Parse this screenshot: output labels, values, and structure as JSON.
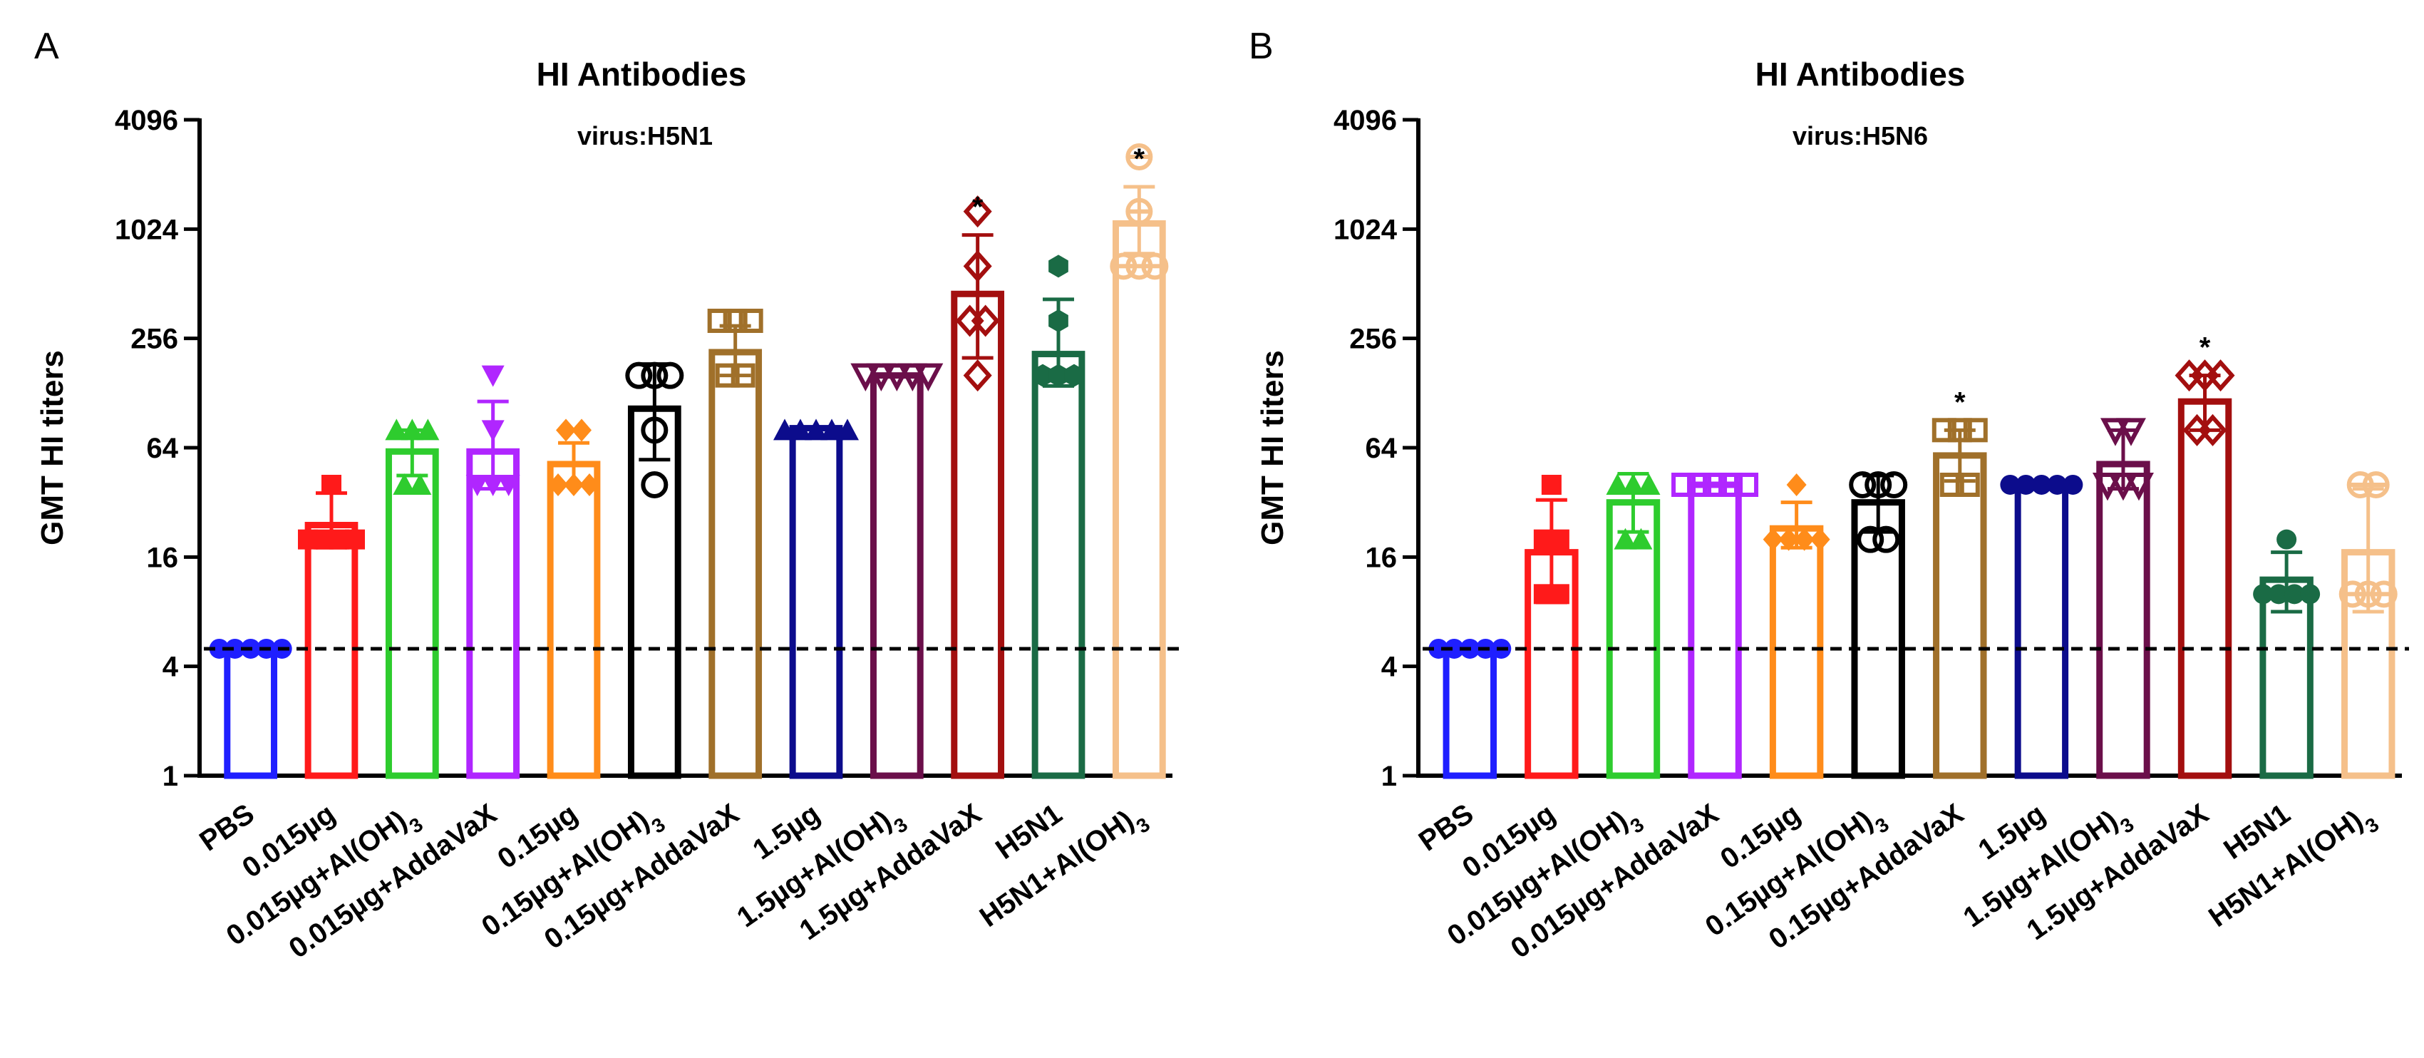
{
  "chart_data": [
    {
      "panel": "A",
      "type": "bar",
      "title": "HI Antibodies",
      "subtitle": "virus:H5N1",
      "ylabel": "GMT HI titers",
      "xlabel": "",
      "yscale": "log2",
      "ylim": [
        1,
        4096
      ],
      "yticks": [
        {
          "value": 1,
          "label": "1"
        },
        {
          "value": 4,
          "label": "4"
        },
        {
          "value": 16,
          "label": "16"
        },
        {
          "value": 64,
          "label": "64"
        },
        {
          "value": 256,
          "label": "256"
        },
        {
          "value": 1024,
          "label": "1024"
        },
        {
          "value": 4096,
          "label": "4096"
        }
      ],
      "threshold": 5,
      "categories": [
        {
          "prefix": "PBS"
        },
        {
          "prefix": "0.015µg"
        },
        {
          "prefix": "0.015µg+Al(OH)",
          "sub": "3"
        },
        {
          "prefix": "0.015µg+AddaVaX"
        },
        {
          "prefix": "0.15µg"
        },
        {
          "prefix": "0.15µg+Al(OH)",
          "sub": "3"
        },
        {
          "prefix": "0.15µg+AddaVaX"
        },
        {
          "prefix": "1.5µg"
        },
        {
          "prefix": "1.5µg+Al(OH)",
          "sub": "3"
        },
        {
          "prefix": "1.5µg+AddaVaX"
        },
        {
          "prefix": "H5N1"
        },
        {
          "prefix": "H5N1+Al(OH)",
          "sub": "3"
        }
      ],
      "series": [
        {
          "color": "#1f1fff",
          "marker": "circle-filled",
          "mean": 5,
          "err_low": 5,
          "err_high": 5,
          "points": [
            5,
            5,
            5,
            5,
            5
          ],
          "sig": ""
        },
        {
          "color": "#ff1a1a",
          "marker": "square-filled",
          "mean": 24,
          "err_low": 18,
          "err_high": 36,
          "points": [
            20,
            20,
            20,
            20,
            40
          ],
          "sig": ""
        },
        {
          "color": "#2ecc2e",
          "marker": "triangle-up-filled",
          "mean": 61,
          "err_low": 45,
          "err_high": 80,
          "points": [
            40,
            40,
            80,
            80,
            80
          ],
          "sig": ""
        },
        {
          "color": "#b026ff",
          "marker": "triangle-down-filled",
          "mean": 61,
          "err_low": 38,
          "err_high": 115,
          "points": [
            40,
            40,
            40,
            80,
            160
          ],
          "sig": ""
        },
        {
          "color": "#ff8c1a",
          "marker": "diamond-filled",
          "mean": 52,
          "err_low": 40,
          "err_high": 68,
          "points": [
            40,
            40,
            40,
            80,
            80
          ],
          "sig": ""
        },
        {
          "color": "#000000",
          "marker": "circle-open",
          "mean": 105,
          "err_low": 55,
          "err_high": 185,
          "points": [
            40,
            80,
            160,
            160,
            160
          ],
          "sig": ""
        },
        {
          "color": "#a0702a",
          "marker": "square-open",
          "mean": 215,
          "err_low": 160,
          "err_high": 300,
          "points": [
            160,
            160,
            320,
            320,
            320
          ],
          "sig": ""
        },
        {
          "color": "#0c0c8c",
          "marker": "triangle-up-filled",
          "mean": 82,
          "err_low": 82,
          "err_high": 82,
          "points": [
            80,
            80,
            80,
            80,
            80
          ],
          "sig": ""
        },
        {
          "color": "#6b0f4a",
          "marker": "triangle-down-open",
          "mean": 160,
          "err_low": 160,
          "err_high": 160,
          "points": [
            160,
            160,
            160,
            160,
            160
          ],
          "sig": ""
        },
        {
          "color": "#a30f0f",
          "marker": "diamond-open",
          "mean": 450,
          "err_low": 200,
          "err_high": 950,
          "points": [
            160,
            320,
            320,
            640,
            1280
          ],
          "sig": "*"
        },
        {
          "color": "#1a6b45",
          "marker": "hexagon-filled",
          "mean": 210,
          "err_low": 140,
          "err_high": 420,
          "points": [
            160,
            160,
            160,
            320,
            640
          ],
          "sig": ""
        },
        {
          "color": "#f5c08a",
          "marker": "circle-half",
          "mean": 1100,
          "err_low": 750,
          "err_high": 1750,
          "points": [
            640,
            640,
            640,
            1280,
            2560
          ],
          "sig": "*"
        }
      ]
    },
    {
      "panel": "B",
      "type": "bar",
      "title": "HI Antibodies",
      "subtitle": "virus:H5N6",
      "ylabel": "GMT HI titers",
      "xlabel": "",
      "yscale": "log2",
      "ylim": [
        1,
        4096
      ],
      "yticks": [
        {
          "value": 1,
          "label": "1"
        },
        {
          "value": 4,
          "label": "4"
        },
        {
          "value": 16,
          "label": "16"
        },
        {
          "value": 64,
          "label": "64"
        },
        {
          "value": 256,
          "label": "256"
        },
        {
          "value": 1024,
          "label": "1024"
        },
        {
          "value": 4096,
          "label": "4096"
        }
      ],
      "threshold": 5,
      "categories": [
        {
          "prefix": "PBS"
        },
        {
          "prefix": "0.015µg"
        },
        {
          "prefix": "0.015µg+Al(OH)",
          "sub": "3"
        },
        {
          "prefix": "0.015µg+AddaVaX"
        },
        {
          "prefix": "0.15µg"
        },
        {
          "prefix": "0.15µg+Al(OH)",
          "sub": "3"
        },
        {
          "prefix": "0.15µg+AddaVaX"
        },
        {
          "prefix": "1.5µg"
        },
        {
          "prefix": "1.5µg+Al(OH)",
          "sub": "3"
        },
        {
          "prefix": "1.5µg+AddaVaX"
        },
        {
          "prefix": "H5N1"
        },
        {
          "prefix": "H5N1+Al(OH)",
          "sub": "3"
        }
      ],
      "series": [
        {
          "color": "#1f1fff",
          "marker": "circle-filled",
          "mean": 5,
          "err_low": 5,
          "err_high": 5,
          "points": [
            5,
            5,
            5,
            5,
            5
          ],
          "sig": ""
        },
        {
          "color": "#ff1a1a",
          "marker": "square-filled",
          "mean": 17,
          "err_low": 9,
          "err_high": 33,
          "points": [
            10,
            10,
            20,
            20,
            40
          ],
          "sig": ""
        },
        {
          "color": "#2ecc2e",
          "marker": "triangle-up-filled",
          "mean": 32,
          "err_low": 22,
          "err_high": 46,
          "points": [
            20,
            20,
            40,
            40,
            40
          ],
          "sig": ""
        },
        {
          "color": "#b026ff",
          "marker": "square-open",
          "mean": 40,
          "err_low": 40,
          "err_high": 40,
          "points": [
            40,
            40,
            40,
            40,
            40
          ],
          "sig": ""
        },
        {
          "color": "#ff8c1a",
          "marker": "diamond-filled",
          "mean": 23,
          "err_low": 18,
          "err_high": 32,
          "points": [
            20,
            20,
            20,
            20,
            40
          ],
          "sig": ""
        },
        {
          "color": "#000000",
          "marker": "circle-open",
          "mean": 32,
          "err_low": 22,
          "err_high": 45,
          "points": [
            20,
            20,
            40,
            40,
            40
          ],
          "sig": ""
        },
        {
          "color": "#a0702a",
          "marker": "square-open",
          "mean": 58,
          "err_low": 42,
          "err_high": 80,
          "points": [
            40,
            40,
            80,
            80,
            80
          ],
          "sig": "*"
        },
        {
          "color": "#0c0c8c",
          "marker": "circle-filled",
          "mean": 40,
          "err_low": 40,
          "err_high": 40,
          "points": [
            40,
            40,
            40,
            40,
            40
          ],
          "sig": ""
        },
        {
          "color": "#6b0f4a",
          "marker": "triangle-down-open",
          "mean": 52,
          "err_low": 38,
          "err_high": 80,
          "points": [
            40,
            40,
            40,
            80,
            80
          ],
          "sig": ""
        },
        {
          "color": "#a30f0f",
          "marker": "diamond-open",
          "mean": 115,
          "err_low": 80,
          "err_high": 160,
          "points": [
            80,
            80,
            160,
            160,
            160
          ],
          "sig": "*"
        },
        {
          "color": "#1a6b45",
          "marker": "circle-filled",
          "mean": 12,
          "err_low": 8,
          "err_high": 17,
          "points": [
            10,
            10,
            10,
            10,
            20
          ],
          "sig": ""
        },
        {
          "color": "#f5c08a",
          "marker": "circle-half",
          "mean": 17,
          "err_low": 8,
          "err_high": 38,
          "points": [
            10,
            10,
            10,
            40,
            40
          ],
          "sig": ""
        }
      ]
    }
  ]
}
